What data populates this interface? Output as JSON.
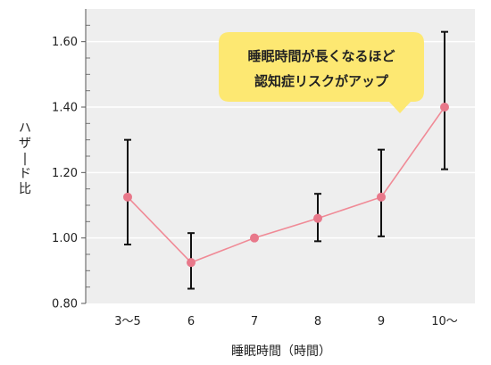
{
  "chart_data": {
    "type": "line",
    "categories": [
      "3〜5",
      "6",
      "7",
      "8",
      "9",
      "10〜"
    ],
    "values": [
      1.125,
      0.925,
      1.0,
      1.06,
      1.125,
      1.4
    ],
    "error_low": [
      0.98,
      0.845,
      1.0,
      0.99,
      1.005,
      1.21
    ],
    "error_high": [
      1.3,
      1.015,
      1.0,
      1.135,
      1.27,
      1.63
    ],
    "xlabel": "睡眠時間（時間）",
    "ylabel": "ハザード比",
    "ylim": [
      0.8,
      1.7
    ],
    "yticks": [
      0.8,
      1.0,
      1.2,
      1.4,
      1.6
    ],
    "ytick_labels": [
      "0.80",
      "1.00",
      "1.20",
      "1.40",
      "1.60"
    ],
    "grid": true,
    "annotation": {
      "lines": [
        "睡眠時間が長くなるほど",
        "認知症リスクがアップ"
      ],
      "target_category": "10〜"
    },
    "colors": {
      "plot_background": "#eeeeee",
      "gridline": "#ffffff",
      "line": "#f08a96",
      "marker": "#e8788a",
      "error_bar": "#111111",
      "callout_fill": "#fde872"
    }
  }
}
